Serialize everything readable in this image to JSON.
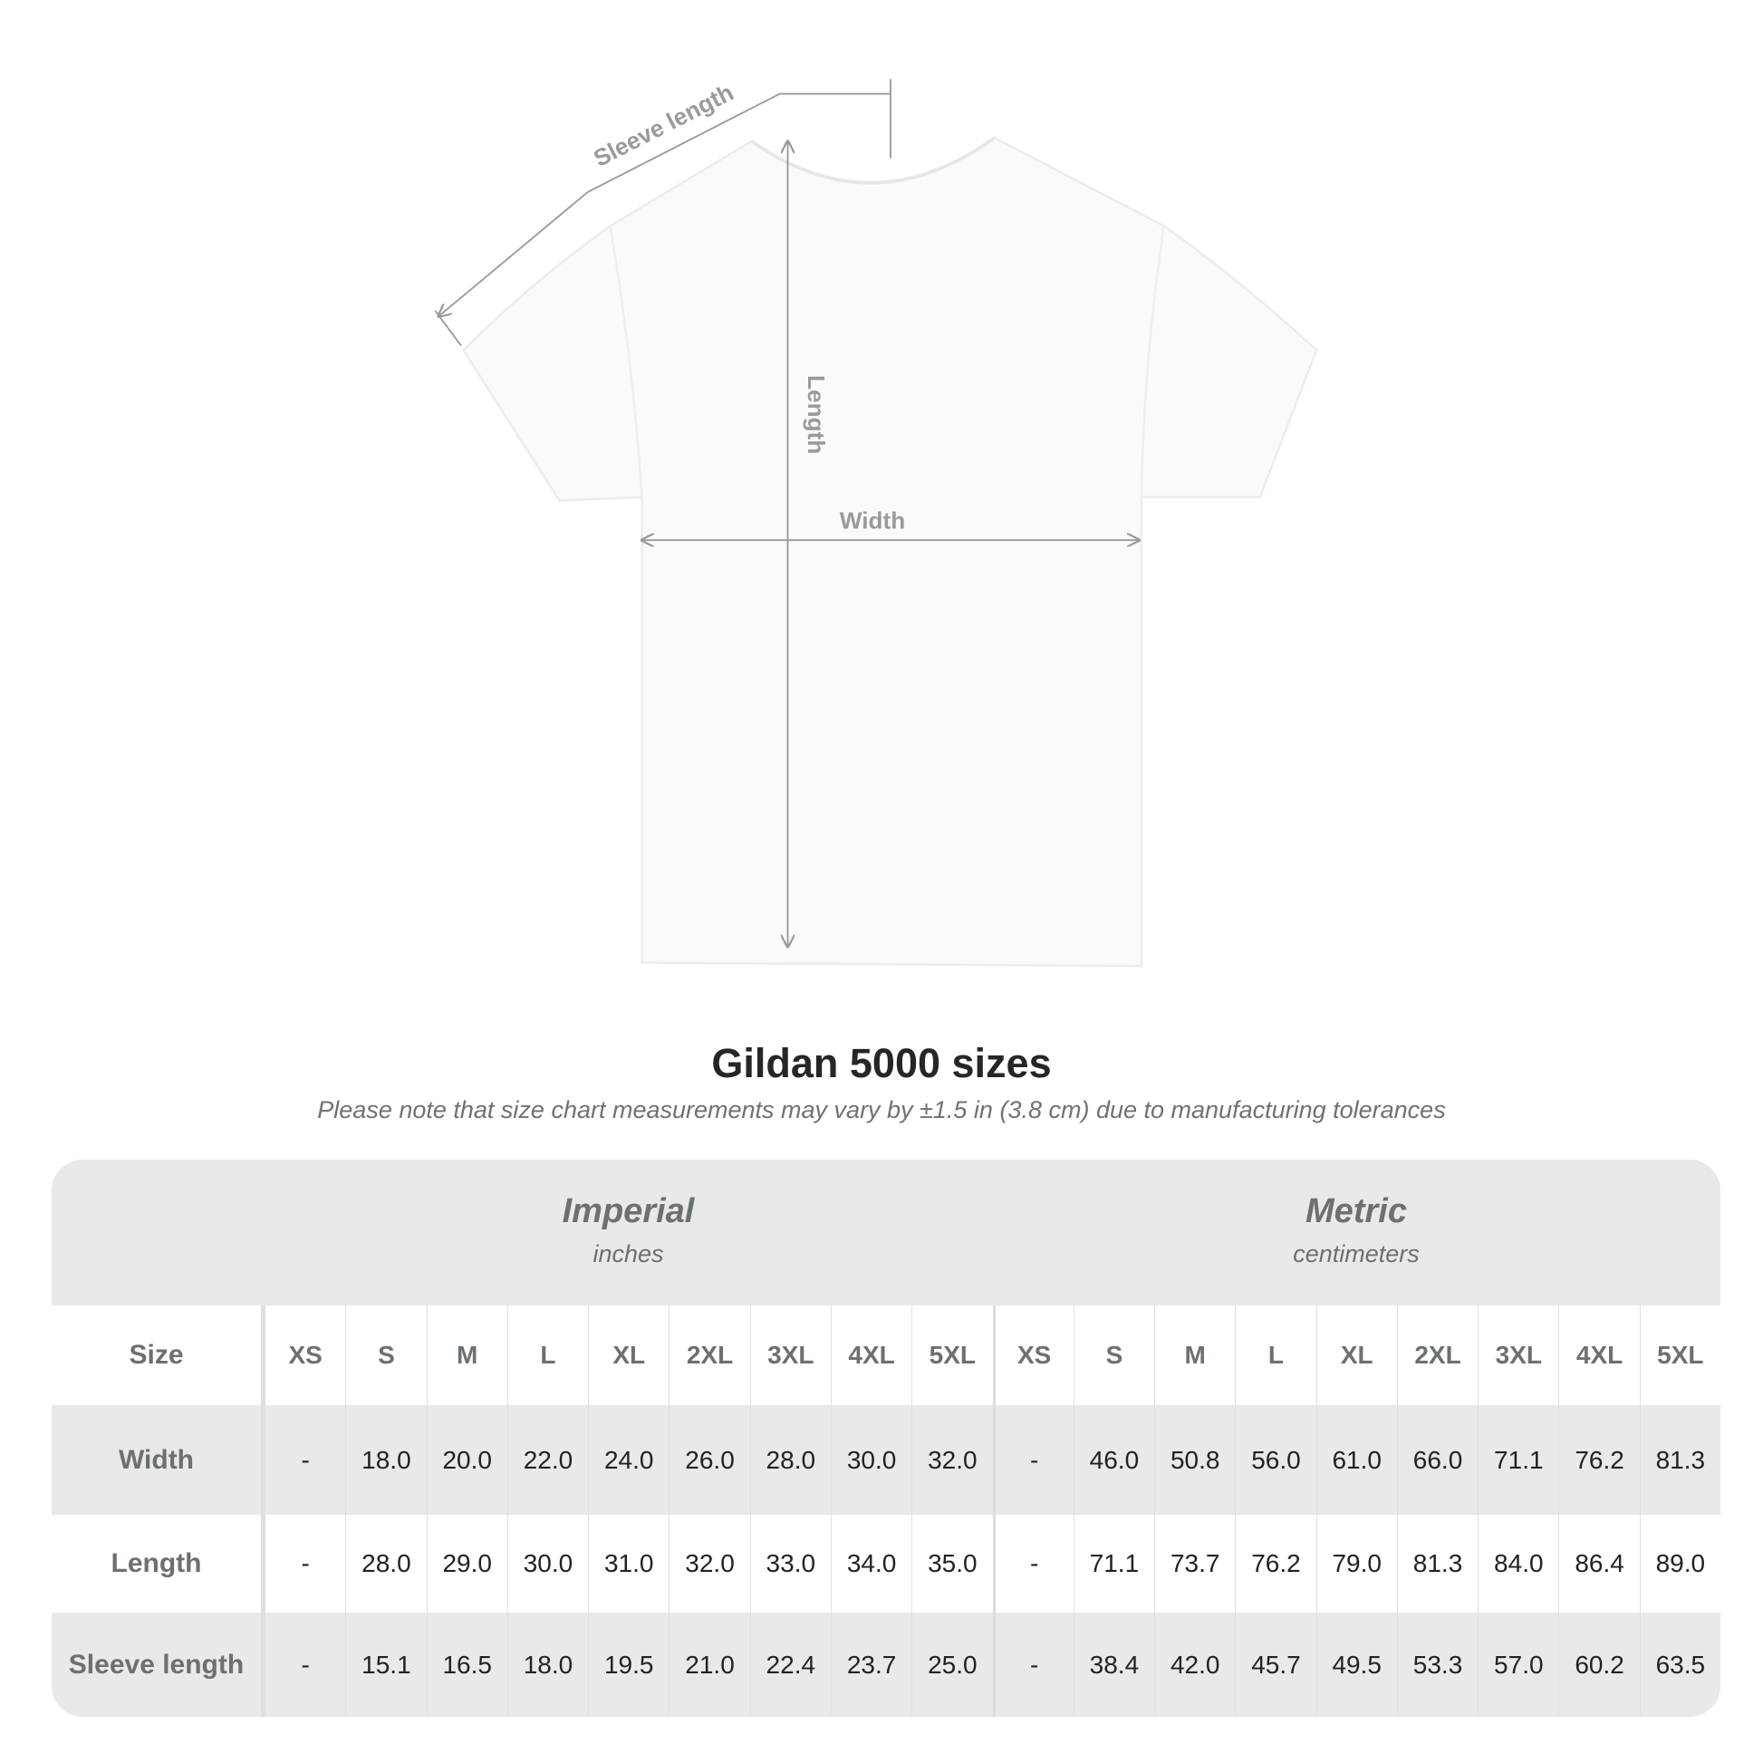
{
  "diagram": {
    "labels": {
      "sleeve_length": "Sleeve length",
      "length": "Length",
      "width": "Width"
    },
    "line_color": "#9a9a9a"
  },
  "title": "Gildan 5000 sizes",
  "note": "Please note that size chart measurements may vary by ±1.5 in (3.8 cm) due to manufacturing tolerances",
  "table": {
    "imperial": {
      "label": "Imperial",
      "unit": "inches"
    },
    "metric": {
      "label": "Metric",
      "unit": "centimeters"
    },
    "size_label": "Size",
    "sizes": [
      "XS",
      "S",
      "M",
      "L",
      "XL",
      "2XL",
      "3XL",
      "4XL",
      "5XL"
    ],
    "rows": [
      {
        "label": "Width",
        "imperial": [
          "-",
          "18.0",
          "20.0",
          "22.0",
          "24.0",
          "26.0",
          "28.0",
          "30.0",
          "32.0"
        ],
        "metric": [
          "-",
          "46.0",
          "50.8",
          "56.0",
          "61.0",
          "66.0",
          "71.1",
          "76.2",
          "81.3"
        ]
      },
      {
        "label": "Length",
        "imperial": [
          "-",
          "28.0",
          "29.0",
          "30.0",
          "31.0",
          "32.0",
          "33.0",
          "34.0",
          "35.0"
        ],
        "metric": [
          "-",
          "71.1",
          "73.7",
          "76.2",
          "79.0",
          "81.3",
          "84.0",
          "86.4",
          "89.0"
        ]
      },
      {
        "label": "Sleeve length",
        "imperial": [
          "-",
          "15.1",
          "16.5",
          "18.0",
          "19.5",
          "21.0",
          "22.4",
          "23.7",
          "25.0"
        ],
        "metric": [
          "-",
          "38.4",
          "42.0",
          "45.7",
          "49.5",
          "53.3",
          "57.0",
          "60.2",
          "63.5"
        ]
      }
    ]
  }
}
